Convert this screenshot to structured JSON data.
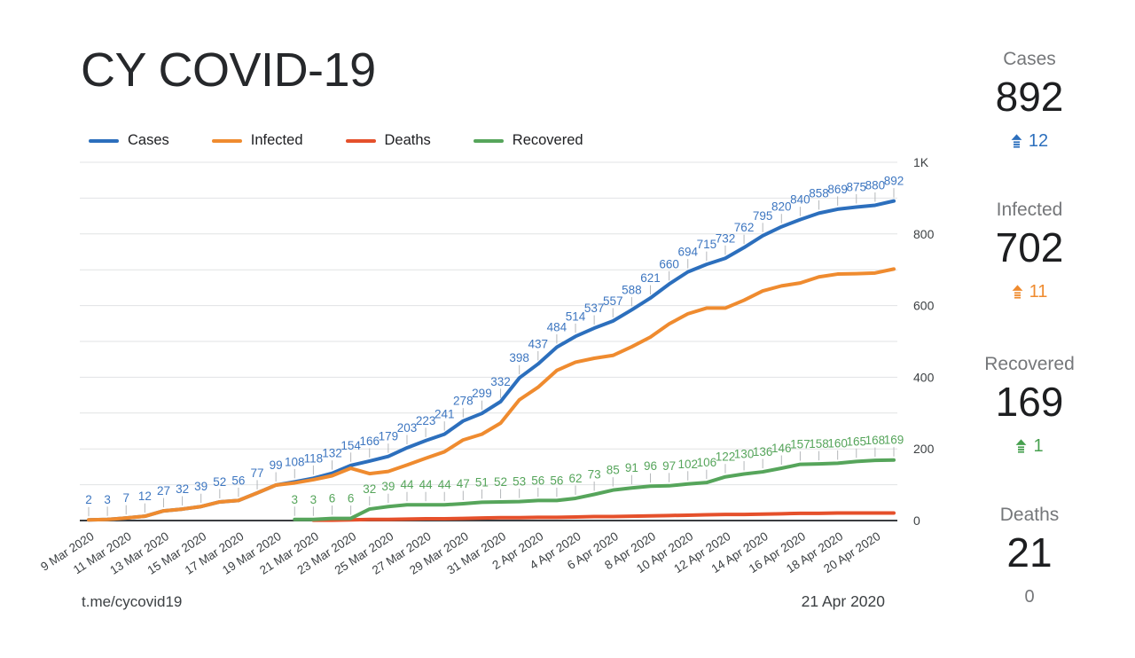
{
  "page": {
    "title": "CY COVID-19"
  },
  "footer": {
    "source": "t.me/cycovid19",
    "date": "21 Apr 2020"
  },
  "sidebar": {
    "stats": [
      {
        "label": "Cases",
        "value": "892",
        "change": "12",
        "direction": "up",
        "color": "#2c6fbd"
      },
      {
        "label": "Infected",
        "value": "702",
        "change": "11",
        "direction": "up",
        "color": "#ef8b2f"
      },
      {
        "label": "Recovered",
        "value": "169",
        "change": "1",
        "direction": "up",
        "color": "#47a04f"
      },
      {
        "label": "Deaths",
        "value": "21",
        "change": "0",
        "direction": "none",
        "color": "#75777a"
      }
    ]
  },
  "chart_data": {
    "type": "line",
    "title": "CY COVID-19",
    "xlabel": "",
    "ylabel": "",
    "ylim": [
      0,
      1000
    ],
    "grid": true,
    "grid_step": 100,
    "legend_position": "top-left",
    "y_ticks": [
      {
        "value": 0,
        "label": "0"
      },
      {
        "value": 200,
        "label": "200"
      },
      {
        "value": 400,
        "label": "400"
      },
      {
        "value": 600,
        "label": "600"
      },
      {
        "value": 800,
        "label": "800"
      },
      {
        "value": 1000,
        "label": "1K"
      }
    ],
    "x_tick_every": 2,
    "categories": [
      "9 Mar 2020",
      "10 Mar 2020",
      "11 Mar 2020",
      "12 Mar 2020",
      "13 Mar 2020",
      "14 Mar 2020",
      "15 Mar 2020",
      "16 Mar 2020",
      "17 Mar 2020",
      "18 Mar 2020",
      "19 Mar 2020",
      "20 Mar 2020",
      "21 Mar 2020",
      "22 Mar 2020",
      "23 Mar 2020",
      "24 Mar 2020",
      "25 Mar 2020",
      "26 Mar 2020",
      "27 Mar 2020",
      "28 Mar 2020",
      "29 Mar 2020",
      "30 Mar 2020",
      "31 Mar 2020",
      "1 Apr 2020",
      "2 Apr 2020",
      "3 Apr 2020",
      "4 Apr 2020",
      "5 Apr 2020",
      "6 Apr 2020",
      "7 Apr 2020",
      "8 Apr 2020",
      "9 Apr 2020",
      "10 Apr 2020",
      "11 Apr 2020",
      "12 Apr 2020",
      "13 Apr 2020",
      "14 Apr 2020",
      "15 Apr 2020",
      "16 Apr 2020",
      "17 Apr 2020",
      "18 Apr 2020",
      "19 Apr 2020",
      "20 Apr 2020",
      "21 Apr 2020"
    ],
    "series": [
      {
        "name": "Cases",
        "color": "#2c6fbd",
        "label_color": "#3d76c0",
        "start_index": 0,
        "show_point_labels": true,
        "values": [
          2,
          3,
          7,
          12,
          27,
          32,
          39,
          52,
          56,
          77,
          99,
          108,
          118,
          132,
          154,
          166,
          179,
          203,
          223,
          241,
          278,
          299,
          332,
          398,
          437,
          484,
          514,
          537,
          557,
          588,
          621,
          660,
          694,
          715,
          732,
          762,
          795,
          820,
          840,
          858,
          869,
          875,
          880,
          892
        ]
      },
      {
        "name": "Infected",
        "color": "#ef8b2f",
        "label_color": "#ef8b2f",
        "start_index": 0,
        "show_point_labels": false,
        "values": [
          2,
          3,
          7,
          12,
          27,
          32,
          39,
          52,
          56,
          77,
          99,
          105,
          114,
          125,
          146,
          131,
          137,
          155,
          174,
          192,
          225,
          241,
          272,
          337,
          372,
          419,
          442,
          453,
          461,
          485,
          512,
          549,
          577,
          593,
          593,
          615,
          641,
          655,
          663,
          680,
          688,
          689,
          691,
          702
        ]
      },
      {
        "name": "Deaths",
        "color": "#e5502b",
        "label_color": "#e5502b",
        "start_index": 12,
        "show_point_labels": false,
        "values": [
          1,
          1,
          2,
          3,
          3,
          4,
          5,
          5,
          6,
          7,
          8,
          8,
          9,
          9,
          10,
          11,
          11,
          12,
          13,
          14,
          15,
          16,
          17,
          17,
          18,
          19,
          20,
          20,
          21,
          21,
          21,
          21
        ]
      },
      {
        "name": "Recovered",
        "color": "#56a55b",
        "label_color": "#56a55b",
        "start_index": 11,
        "show_point_labels": true,
        "values": [
          3,
          3,
          6,
          6,
          32,
          39,
          44,
          44,
          44,
          47,
          51,
          52,
          53,
          56,
          56,
          62,
          73,
          85,
          91,
          96,
          97,
          102,
          106,
          122,
          130,
          136,
          146,
          157,
          158,
          160,
          165,
          168,
          169
        ]
      }
    ]
  }
}
